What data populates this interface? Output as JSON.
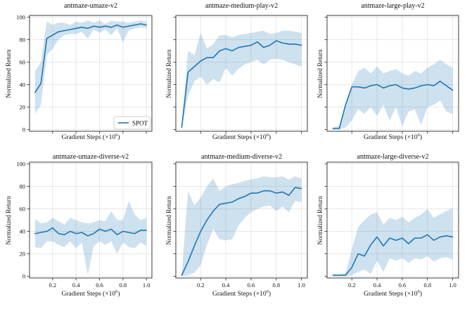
{
  "figure": {
    "ylabel": "Normalized Return",
    "xlabel_prefix": "Gradient Steps (×10",
    "xlabel_sup": "6",
    "xlabel_suffix": ")",
    "legend_label": "SPOT",
    "x_tick_labels": [
      "0.2",
      "0.4",
      "0.6",
      "0.8",
      "1.0"
    ],
    "x_tick_values": [
      0.2,
      0.4,
      0.6,
      0.8,
      1.0
    ],
    "y_tick_labels": [
      "0",
      "20",
      "40",
      "60",
      "80",
      "100"
    ],
    "y_tick_values": [
      0,
      20,
      40,
      60,
      80,
      100
    ],
    "grid": true,
    "colors": {
      "line": "#1f77b4",
      "band": "#1f77b4",
      "band_opacity": 0.22,
      "grid": "#e7e7e7",
      "spine": "#3b3b3b",
      "text": "#111111",
      "legend_border": "#cccccc"
    }
  },
  "chart_data": [
    {
      "type": "line",
      "title": "antmaze-umaze-v2",
      "xlabel": "Gradient Steps (×10⁶)",
      "ylabel": "Normalized Return",
      "xlim": [
        0.003,
        1.047
      ],
      "ylim": [
        -1.5,
        101.5
      ],
      "x": [
        0.05,
        0.1,
        0.15,
        0.2,
        0.25,
        0.3,
        0.35,
        0.4,
        0.45,
        0.5,
        0.55,
        0.6,
        0.65,
        0.7,
        0.75,
        0.8,
        0.85,
        0.9,
        0.95,
        1.0
      ],
      "series": [
        {
          "name": "SPOT",
          "values": [
            33,
            41,
            81,
            84,
            87,
            88,
            89,
            90,
            91,
            90,
            92,
            91,
            92,
            91,
            93,
            91,
            92,
            93,
            94,
            93
          ],
          "band_lower": [
            14,
            22,
            66,
            72,
            80,
            84,
            85,
            85,
            87,
            81,
            89,
            86,
            89,
            84,
            90,
            78,
            88,
            90,
            91,
            90
          ],
          "band_upper": [
            52,
            60,
            96,
            93,
            95,
            95,
            93,
            96,
            95,
            97,
            95,
            97,
            94,
            97,
            96,
            96,
            95,
            96,
            97,
            96
          ]
        }
      ],
      "legend": [
        "SPOT"
      ],
      "show_x_ticklabels": false,
      "show_y_ticklabels": true,
      "show_legend": true
    },
    {
      "type": "line",
      "title": "antmaze-medium-play-v2",
      "xlabel": "Gradient Steps (×10⁶)",
      "ylabel": "Normalized Return",
      "xlim": [
        0.003,
        1.047
      ],
      "ylim": [
        -1.5,
        101.5
      ],
      "x": [
        0.05,
        0.1,
        0.15,
        0.2,
        0.25,
        0.3,
        0.35,
        0.4,
        0.45,
        0.5,
        0.55,
        0.6,
        0.65,
        0.7,
        0.75,
        0.8,
        0.85,
        0.9,
        0.95,
        1.0
      ],
      "series": [
        {
          "name": "SPOT",
          "values": [
            2,
            51,
            56,
            61,
            64,
            64,
            70,
            72,
            70,
            73,
            74,
            75,
            78,
            73,
            75,
            79,
            77,
            76,
            76,
            75
          ],
          "band_lower": [
            1,
            30,
            43,
            47,
            40,
            45,
            42,
            55,
            48,
            54,
            58,
            60,
            62,
            58,
            62,
            63,
            62,
            60,
            58,
            56
          ],
          "band_upper": [
            4,
            70,
            66,
            86,
            72,
            76,
            84,
            84,
            82,
            84,
            85,
            86,
            87,
            88,
            85,
            86,
            88,
            88,
            87,
            86
          ]
        }
      ],
      "legend": [],
      "show_x_ticklabels": false,
      "show_y_ticklabels": false,
      "show_legend": false
    },
    {
      "type": "line",
      "title": "antmaze-large-play-v2",
      "xlabel": "Gradient Steps (×10⁶)",
      "ylabel": "Normalized Return",
      "xlim": [
        0.003,
        1.047
      ],
      "ylim": [
        -1.5,
        101.5
      ],
      "x": [
        0.05,
        0.1,
        0.15,
        0.2,
        0.25,
        0.3,
        0.35,
        0.4,
        0.45,
        0.5,
        0.55,
        0.6,
        0.65,
        0.7,
        0.75,
        0.8,
        0.85,
        0.9,
        0.95,
        1.0
      ],
      "series": [
        {
          "name": "SPOT",
          "values": [
            1,
            1,
            22,
            38,
            38,
            37,
            39,
            40,
            37,
            39,
            40,
            37,
            36,
            37,
            39,
            40,
            39,
            43,
            39,
            35
          ],
          "band_lower": [
            0,
            0,
            2,
            8,
            18,
            14,
            20,
            12,
            22,
            8,
            20,
            3,
            16,
            18,
            4,
            20,
            22,
            26,
            16,
            14
          ],
          "band_upper": [
            2,
            3,
            20,
            40,
            52,
            55,
            50,
            56,
            50,
            52,
            54,
            50,
            48,
            52,
            50,
            55,
            58,
            62,
            58,
            55
          ]
        }
      ],
      "legend": [],
      "show_x_ticklabels": false,
      "show_y_ticklabels": false,
      "show_legend": false
    },
    {
      "type": "line",
      "title": "antmaze-umaze-diverse-v2",
      "xlabel": "Gradient Steps (×10⁶)",
      "ylabel": "Normalized Return",
      "xlim": [
        0.003,
        1.047
      ],
      "ylim": [
        -1.5,
        101.5
      ],
      "x": [
        0.05,
        0.1,
        0.15,
        0.2,
        0.25,
        0.3,
        0.35,
        0.4,
        0.45,
        0.5,
        0.55,
        0.6,
        0.65,
        0.7,
        0.75,
        0.8,
        0.85,
        0.9,
        0.95,
        1.0
      ],
      "series": [
        {
          "name": "SPOT",
          "values": [
            38,
            39,
            40,
            43,
            38,
            37,
            40,
            38,
            39,
            36,
            38,
            42,
            40,
            42,
            37,
            40,
            39,
            38,
            41,
            41
          ],
          "band_lower": [
            26,
            25,
            31,
            31,
            28,
            26,
            31,
            25,
            30,
            1,
            27,
            31,
            28,
            31,
            20,
            30,
            26,
            25,
            30,
            27
          ],
          "band_upper": [
            51,
            47,
            48,
            52,
            49,
            46,
            52,
            50,
            48,
            47,
            48,
            50,
            49,
            58,
            50,
            50,
            67,
            55,
            50,
            52
          ]
        }
      ],
      "legend": [],
      "show_x_ticklabels": true,
      "show_y_ticklabels": true,
      "show_legend": false
    },
    {
      "type": "line",
      "title": "antmaze-medium-diverse-v2",
      "xlabel": "Gradient Steps (×10⁶)",
      "ylabel": "Normalized Return",
      "xlim": [
        0.003,
        1.047
      ],
      "ylim": [
        -1.5,
        101.5
      ],
      "x": [
        0.05,
        0.1,
        0.15,
        0.2,
        0.25,
        0.3,
        0.35,
        0.4,
        0.45,
        0.5,
        0.55,
        0.6,
        0.65,
        0.7,
        0.75,
        0.8,
        0.85,
        0.9,
        0.95,
        1.0
      ],
      "series": [
        {
          "name": "SPOT",
          "values": [
            1,
            13,
            27,
            40,
            50,
            58,
            64,
            65,
            66,
            69,
            71,
            74,
            74,
            76,
            76,
            74,
            75,
            72,
            79,
            78
          ],
          "band_lower": [
            0,
            1,
            3,
            10,
            28,
            42,
            33,
            32,
            33,
            45,
            52,
            57,
            60,
            62,
            63,
            58,
            62,
            57,
            67,
            66
          ],
          "band_upper": [
            3,
            76,
            63,
            70,
            80,
            87,
            76,
            80,
            82,
            83,
            85,
            86,
            87,
            89,
            88,
            88,
            89,
            86,
            89,
            87
          ]
        }
      ],
      "legend": [],
      "show_x_ticklabels": true,
      "show_y_ticklabels": false,
      "show_legend": false
    },
    {
      "type": "line",
      "title": "antmaze-large-diverse-v2",
      "xlabel": "Gradient Steps (×10⁶)",
      "ylabel": "Normalized Return",
      "xlim": [
        0.003,
        1.047
      ],
      "ylim": [
        -1.5,
        101.5
      ],
      "x": [
        0.05,
        0.1,
        0.15,
        0.2,
        0.25,
        0.3,
        0.35,
        0.4,
        0.45,
        0.5,
        0.55,
        0.6,
        0.65,
        0.7,
        0.75,
        0.8,
        0.85,
        0.9,
        0.95,
        1.0
      ],
      "series": [
        {
          "name": "SPOT",
          "values": [
            1,
            1,
            1,
            8,
            20,
            18,
            28,
            35,
            27,
            34,
            32,
            34,
            29,
            34,
            34,
            37,
            32,
            35,
            36,
            35
          ],
          "band_lower": [
            0,
            0,
            0,
            1,
            4,
            6,
            2,
            14,
            4,
            16,
            14,
            16,
            12,
            16,
            15,
            18,
            13,
            16,
            17,
            15
          ],
          "band_upper": [
            2,
            2,
            3,
            24,
            44,
            50,
            55,
            57,
            46,
            52,
            50,
            53,
            48,
            52,
            55,
            60,
            52,
            55,
            58,
            61
          ]
        }
      ],
      "legend": [],
      "show_x_ticklabels": true,
      "show_y_ticklabels": false,
      "show_legend": false
    }
  ]
}
